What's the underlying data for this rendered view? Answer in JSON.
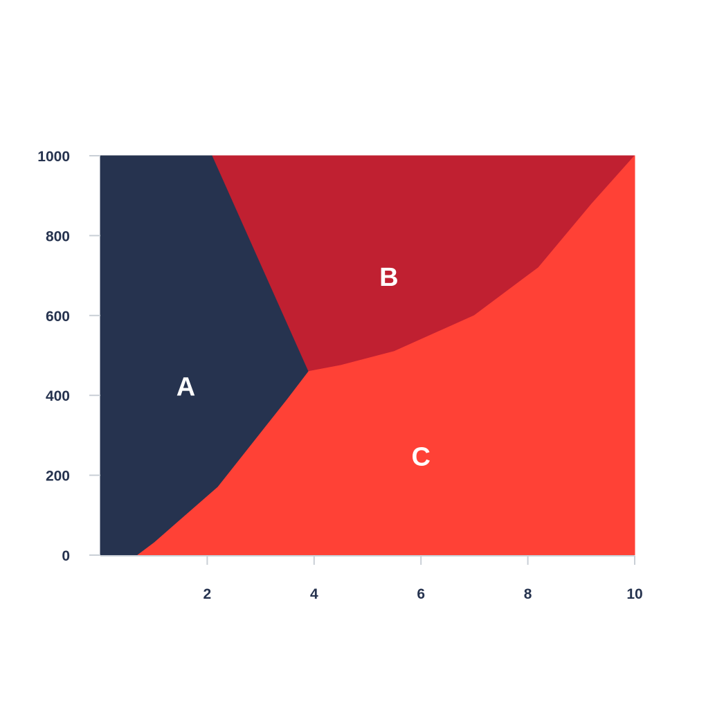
{
  "chart_data": {
    "type": "area",
    "x_ticks": [
      2,
      4,
      6,
      8,
      10
    ],
    "y_ticks": [
      0,
      200,
      400,
      600,
      800,
      1000
    ],
    "xlim": [
      0,
      10
    ],
    "ylim": [
      0,
      1000
    ],
    "grid": false,
    "regions": [
      {
        "label": "A",
        "color": "#26334f",
        "label_at": [
          1.6,
          420
        ],
        "boundary": [
          [
            0,
            0
          ],
          [
            0,
            1000
          ],
          [
            2.1,
            1000
          ],
          [
            3.9,
            460
          ],
          [
            3.5,
            390
          ],
          [
            2.2,
            170
          ],
          [
            1.0,
            30
          ],
          [
            0.7,
            0
          ]
        ]
      },
      {
        "label": "B",
        "color": "#c02031",
        "label_at": [
          5.4,
          695
        ],
        "boundary": [
          [
            2.1,
            1000
          ],
          [
            10,
            1000
          ],
          [
            9.2,
            880
          ],
          [
            8.2,
            720
          ],
          [
            7.0,
            600
          ],
          [
            5.5,
            510
          ],
          [
            4.5,
            475
          ],
          [
            3.9,
            460
          ]
        ]
      },
      {
        "label": "C",
        "color": "#ff4136",
        "label_at": [
          6.0,
          245
        ],
        "boundary": [
          [
            0.7,
            0
          ],
          [
            1.0,
            30
          ],
          [
            2.2,
            170
          ],
          [
            3.5,
            390
          ],
          [
            3.9,
            460
          ],
          [
            4.5,
            475
          ],
          [
            5.5,
            510
          ],
          [
            7.0,
            600
          ],
          [
            8.2,
            720
          ],
          [
            9.2,
            880
          ],
          [
            10,
            1000
          ],
          [
            10,
            0
          ]
        ]
      }
    ]
  }
}
